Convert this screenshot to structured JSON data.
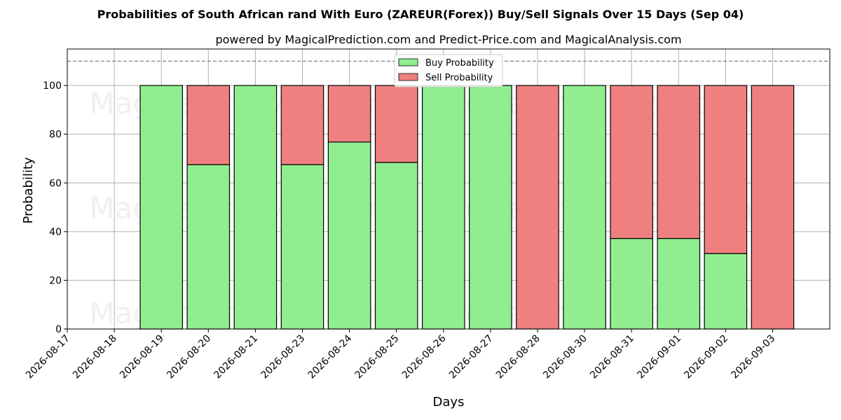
{
  "title": "Probabilities of South African rand With Euro (ZAREUR(Forex)) Buy/Sell Signals Over 15 Days (Sep 04)",
  "subtitle": "powered by MagicalPrediction.com and Predict-Price.com and MagicalAnalysis.com",
  "watermarks": [
    "MagicalAnalysis.com",
    "MagicalPrediction.com"
  ],
  "colors": {
    "buy": "#90ee90",
    "sell": "#f08080",
    "edge": "#000000",
    "grid": "#b0b0b0",
    "refline": "#808080"
  },
  "chart_data": {
    "type": "bar",
    "stacked": true,
    "title": "Probabilities of South African rand With Euro (ZAREUR(Forex)) Buy/Sell Signals Over 15 Days (Sep 04)",
    "xlabel": "Days",
    "ylabel": "Probability",
    "ylim": [
      0,
      115
    ],
    "yticks": [
      0,
      20,
      40,
      60,
      80,
      100
    ],
    "reference_line": 110,
    "grid": true,
    "legend_position": "top-center",
    "categories": [
      "2026-08-17",
      "2026-08-18",
      "2026-08-19",
      "2026-08-20",
      "2026-08-21",
      "2026-08-23",
      "2026-08-24",
      "2026-08-25",
      "2026-08-26",
      "2026-08-27",
      "2026-08-28",
      "2026-08-30",
      "2026-08-31",
      "2026-09-01",
      "2026-09-02",
      "2026-09-03"
    ],
    "series": [
      {
        "name": "Buy Probability",
        "values": [
          null,
          null,
          100,
          67.5,
          100,
          67.5,
          76.8,
          68.4,
          100,
          100,
          0,
          100,
          37.2,
          37.2,
          31,
          0
        ]
      },
      {
        "name": "Sell Probability",
        "values": [
          null,
          null,
          0,
          32.5,
          0,
          32.5,
          23.2,
          31.6,
          0,
          0,
          100,
          0,
          62.8,
          62.8,
          69,
          100
        ]
      }
    ]
  }
}
